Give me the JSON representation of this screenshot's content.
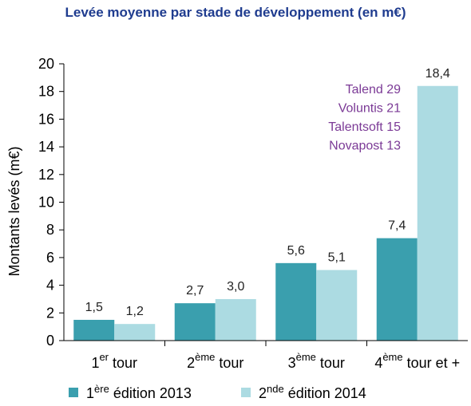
{
  "title": "Levée moyenne par stade de développement (en m€)",
  "chart_data": {
    "type": "bar",
    "title": "Levée moyenne par stade de développement (en m€)",
    "ylabel": "Montants levés (m€)",
    "xlabel": "",
    "ylim": [
      0,
      20
    ],
    "yticks": [
      0,
      2,
      4,
      6,
      8,
      10,
      12,
      14,
      16,
      18,
      20
    ],
    "categories": [
      {
        "base": "1",
        "sup": "er",
        "rest": " tour"
      },
      {
        "base": "2",
        "sup": "ème",
        "rest": " tour"
      },
      {
        "base": "3",
        "sup": "ème",
        "rest": " tour"
      },
      {
        "base": "4",
        "sup": "ème",
        "rest": " tour et +"
      }
    ],
    "series": [
      {
        "legend_base": "1",
        "legend_sup": "ère",
        "legend_rest": " édition 2013",
        "color": "#3a9fae",
        "values": [
          1.5,
          2.7,
          5.6,
          7.4
        ],
        "labels": [
          "1,5",
          "2,7",
          "5,6",
          "7,4"
        ]
      },
      {
        "legend_base": "2",
        "legend_sup": "nde",
        "legend_rest": " édition 2014",
        "color": "#acdbe2",
        "values": [
          1.2,
          3.0,
          5.1,
          18.4
        ],
        "labels": [
          "1,2",
          "3,0",
          "5,1",
          "18,4"
        ]
      }
    ],
    "annotations": [
      "Talend 29",
      "Voluntis 21",
      "Talentsoft 15",
      "Novapost 13"
    ],
    "grid": false,
    "legend_position": "bottom"
  }
}
